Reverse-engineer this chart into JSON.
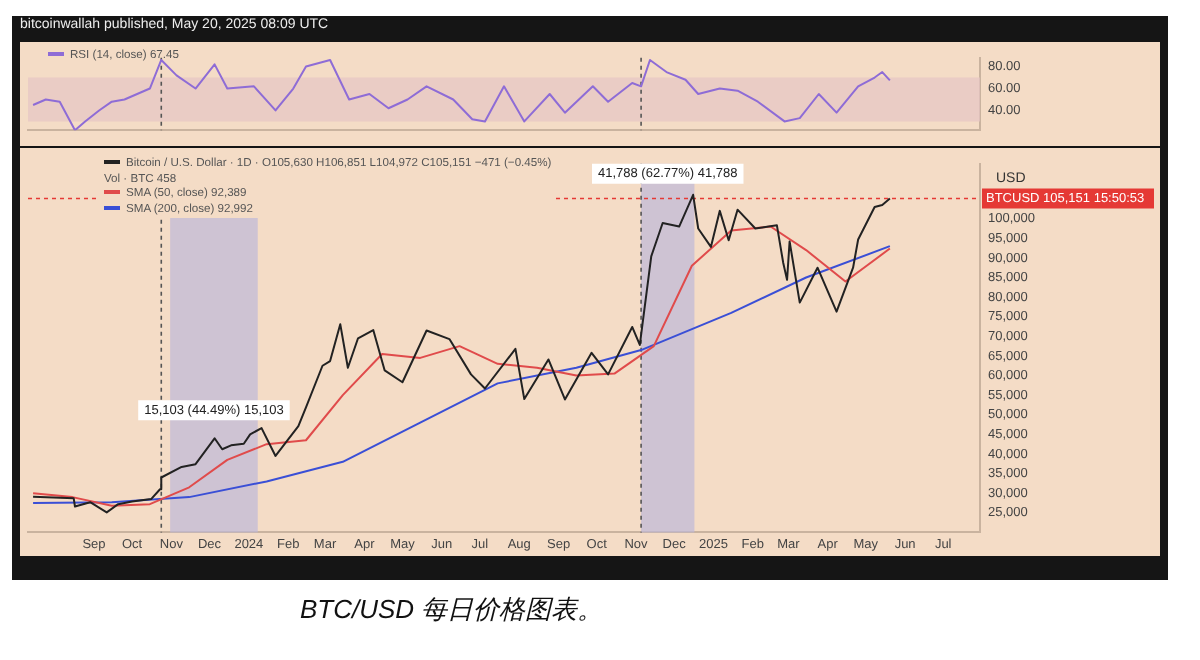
{
  "chart_data": [
    {
      "type": "line",
      "annotations": [
        "bitcoinwallah published, May 20, 2025 08:09 UTC"
      ],
      "x": [
        "2023-07-15",
        "2023-07-25",
        "2023-08-05",
        "2023-08-17",
        "2023-08-25",
        "2023-09-05",
        "2023-09-15",
        "2023-09-25",
        "2023-10-05",
        "2023-10-15",
        "2023-10-24",
        "2023-11-05",
        "2023-11-20",
        "2023-12-05",
        "2023-12-15",
        "2024-01-05",
        "2024-01-22",
        "2024-02-05",
        "2024-02-15",
        "2024-03-05",
        "2024-03-20",
        "2024-04-05",
        "2024-04-20",
        "2024-05-05",
        "2024-05-20",
        "2024-06-10",
        "2024-06-25",
        "2024-07-05",
        "2024-07-20",
        "2024-08-05",
        "2024-08-25",
        "2024-09-06",
        "2024-09-28",
        "2024-10-10",
        "2024-10-29",
        "2024-11-05",
        "2024-11-12",
        "2024-11-25",
        "2024-12-10",
        "2024-12-20",
        "2025-01-06",
        "2025-01-20",
        "2025-02-05",
        "2025-02-26",
        "2025-03-10",
        "2025-03-25",
        "2025-04-08",
        "2025-04-25",
        "2025-05-08",
        "2025-05-14",
        "2025-05-20"
      ],
      "series": [
        {
          "name": "RSI (14, close) 67.45",
          "color": "#8e6cd6",
          "values": [
            45,
            50,
            48,
            22,
            30,
            40,
            48,
            50,
            55,
            60,
            86,
            72,
            60,
            82,
            60,
            62,
            40,
            60,
            80,
            86,
            50,
            55,
            42,
            50,
            62,
            50,
            32,
            30,
            62,
            30,
            55,
            38,
            62,
            48,
            65,
            62,
            86,
            75,
            68,
            55,
            60,
            58,
            48,
            30,
            33,
            55,
            38,
            62,
            70,
            75,
            67.45
          ]
        }
      ],
      "xlim": [
        "2023-07-11",
        "2025-07-30"
      ],
      "ylim": [
        22,
        88
      ],
      "yticks": [
        {
          "value": 40,
          "label": "40.00"
        },
        {
          "value": 60,
          "label": "60.00"
        },
        {
          "value": 80,
          "label": "80.00"
        }
      ],
      "bands": [
        {
          "axis": "y",
          "from": 30,
          "to": 70,
          "color": "#e6c4c4"
        }
      ],
      "ref_lines": [
        {
          "axis": "x",
          "value": "2023-10-24",
          "line_style": "dotted",
          "color": "#555555"
        },
        {
          "axis": "x",
          "value": "2024-11-05",
          "line_style": "dotted",
          "color": "#555555"
        }
      ],
      "tick_labels": "y",
      "legend": "top left",
      "grid": false,
      "marker": "none",
      "line_style": "solid"
    },
    {
      "type": "line",
      "ylabel": "USD",
      "annotations": [
        "Vol · BTC 458",
        "BTC/USD 每日价格图表。"
      ],
      "series": [
        {
          "name": "Bitcoin / U.S. Dollar · 1D · O105,630 H106,851 L104,972 C105,151 −471 (−0.45%)",
          "color": "#222222",
          "x": [
            "2023-07-15",
            "2023-08-16",
            "2023-08-17",
            "2023-08-29",
            "2023-09-11",
            "2023-09-20",
            "2023-10-01",
            "2023-10-16",
            "2023-10-23",
            "2023-10-24",
            "2023-11-09",
            "2023-11-20",
            "2023-12-05",
            "2023-12-11",
            "2023-12-18",
            "2023-12-28",
            "2024-01-02",
            "2024-01-11",
            "2024-01-22",
            "2024-02-09",
            "2024-02-15",
            "2024-02-28",
            "2024-03-05",
            "2024-03-13",
            "2024-03-19",
            "2024-03-27",
            "2024-04-08",
            "2024-04-17",
            "2024-05-01",
            "2024-05-20",
            "2024-06-07",
            "2024-06-24",
            "2024-07-05",
            "2024-07-29",
            "2024-08-05",
            "2024-08-24",
            "2024-09-06",
            "2024-09-27",
            "2024-10-10",
            "2024-10-29",
            "2024-11-04",
            "2024-11-13",
            "2024-11-22",
            "2024-12-05",
            "2024-12-16",
            "2024-12-20",
            "2024-12-30",
            "2025-01-06",
            "2025-01-13",
            "2025-01-20",
            "2025-02-03",
            "2025-02-20",
            "2025-02-25",
            "2025-02-28",
            "2025-03-02",
            "2025-03-10",
            "2025-03-24",
            "2025-04-08",
            "2025-04-21",
            "2025-04-25",
            "2025-05-08",
            "2025-05-14",
            "2025-05-20"
          ],
          "values": [
            29100,
            28700,
            26600,
            27700,
            25100,
            27200,
            27900,
            28500,
            31000,
            34000,
            36700,
            37400,
            44000,
            41200,
            42200,
            42600,
            45000,
            46600,
            39500,
            47100,
            51900,
            62500,
            63700,
            73100,
            62000,
            69500,
            71600,
            61300,
            58300,
            71500,
            69300,
            60300,
            56700,
            66800,
            54000,
            64100,
            53900,
            65800,
            60300,
            72400,
            67800,
            90400,
            98900,
            98000,
            106100,
            97500,
            92800,
            102000,
            94500,
            102300,
            97500,
            98300,
            88700,
            84400,
            94200,
            78600,
            87500,
            76300,
            87500,
            94700,
            103000,
            103500,
            105151
          ]
        },
        {
          "name": "SMA (50, close) 92,389",
          "color": "#e04b4b",
          "x": [
            "2023-07-15",
            "2023-08-15",
            "2023-09-15",
            "2023-10-15",
            "2023-11-15",
            "2023-12-15",
            "2024-01-15",
            "2024-02-15",
            "2024-03-15",
            "2024-04-15",
            "2024-05-15",
            "2024-06-15",
            "2024-07-15",
            "2024-08-15",
            "2024-09-15",
            "2024-10-15",
            "2024-11-15",
            "2024-12-15",
            "2025-01-15",
            "2025-02-15",
            "2025-03-15",
            "2025-04-15",
            "2025-05-20"
          ],
          "values": [
            30000,
            29000,
            26800,
            27200,
            31500,
            38500,
            42500,
            43500,
            55000,
            65500,
            64500,
            67500,
            63000,
            62000,
            60000,
            60500,
            67500,
            88000,
            97000,
            98000,
            92000,
            84000,
            92389
          ]
        },
        {
          "name": "SMA (200, close) 92,992",
          "color": "#3a4fd6",
          "x": [
            "2023-07-15",
            "2023-09-15",
            "2023-11-15",
            "2024-01-15",
            "2024-03-15",
            "2024-05-15",
            "2024-07-15",
            "2024-09-15",
            "2024-11-05",
            "2025-01-15",
            "2025-03-15",
            "2025-05-20"
          ],
          "values": [
            27500,
            27700,
            29000,
            33000,
            38000,
            48000,
            58000,
            62000,
            66500,
            76000,
            85000,
            92992
          ]
        }
      ],
      "xlim": [
        "2023-07-11",
        "2025-07-30"
      ],
      "ylim": [
        20000,
        114000
      ],
      "xticks": [
        {
          "value": "2023-09-01",
          "label": "Sep"
        },
        {
          "value": "2023-10-01",
          "label": "Oct"
        },
        {
          "value": "2023-11-01",
          "label": "Nov"
        },
        {
          "value": "2023-12-01",
          "label": "Dec"
        },
        {
          "value": "2024-01-01",
          "label": "2024"
        },
        {
          "value": "2024-02-01",
          "label": "Feb"
        },
        {
          "value": "2024-03-01",
          "label": "Mar"
        },
        {
          "value": "2024-04-01",
          "label": "Apr"
        },
        {
          "value": "2024-05-01",
          "label": "May"
        },
        {
          "value": "2024-06-01",
          "label": "Jun"
        },
        {
          "value": "2024-07-01",
          "label": "Jul"
        },
        {
          "value": "2024-08-01",
          "label": "Aug"
        },
        {
          "value": "2024-09-01",
          "label": "Sep"
        },
        {
          "value": "2024-10-01",
          "label": "Oct"
        },
        {
          "value": "2024-11-01",
          "label": "Nov"
        },
        {
          "value": "2024-12-01",
          "label": "Dec"
        },
        {
          "value": "2025-01-01",
          "label": "2025"
        },
        {
          "value": "2025-02-01",
          "label": "Feb"
        },
        {
          "value": "2025-03-01",
          "label": "Mar"
        },
        {
          "value": "2025-04-01",
          "label": "Apr"
        },
        {
          "value": "2025-05-01",
          "label": "May"
        },
        {
          "value": "2025-06-01",
          "label": "Jun"
        },
        {
          "value": "2025-07-01",
          "label": "Jul"
        }
      ],
      "yticks": [
        {
          "value": 25000,
          "label": "25,000"
        },
        {
          "value": 30000,
          "label": "30,000"
        },
        {
          "value": 35000,
          "label": "35,000"
        },
        {
          "value": 40000,
          "label": "40,000"
        },
        {
          "value": 45000,
          "label": "45,000"
        },
        {
          "value": 50000,
          "label": "50,000"
        },
        {
          "value": 55000,
          "label": "55,000"
        },
        {
          "value": 60000,
          "label": "60,000"
        },
        {
          "value": 65000,
          "label": "65,000"
        },
        {
          "value": 70000,
          "label": "70,000"
        },
        {
          "value": 75000,
          "label": "75,000"
        },
        {
          "value": 80000,
          "label": "80,000"
        },
        {
          "value": 85000,
          "label": "85,000"
        },
        {
          "value": 90000,
          "label": "90,000"
        },
        {
          "value": 95000,
          "label": "95,000"
        },
        {
          "value": 100000,
          "label": "100,000"
        }
      ],
      "bands": [
        {
          "axis": "x",
          "from": "2023-10-31",
          "to": "2024-01-08",
          "label": "15,103 (44.49%) 15,103",
          "color": "#bdb8d8"
        },
        {
          "axis": "x",
          "from": "2024-11-05",
          "to": "2024-12-17",
          "label": "41,788 (62.77%) 41,788",
          "color": "#bdb8d8"
        }
      ],
      "ref_lines": [
        {
          "axis": "x",
          "value": "2023-10-24",
          "line_style": "dotted",
          "color": "#555555"
        },
        {
          "axis": "x",
          "value": "2024-11-05",
          "line_style": "dotted",
          "color": "#555555"
        },
        {
          "axis": "y",
          "value": 105151,
          "label": "BTCUSD 105,151 15:50:53",
          "color": "#e53935",
          "line_style": "dotted"
        }
      ],
      "legend": "top left",
      "grid": false,
      "marker": "none",
      "line_style": "solid"
    }
  ]
}
